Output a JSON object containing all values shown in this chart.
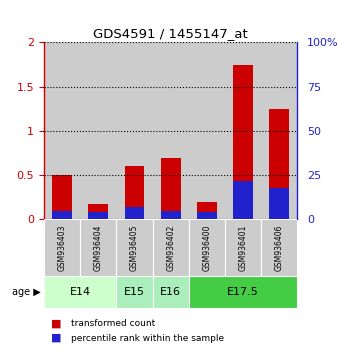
{
  "title": "GDS4591 / 1455147_at",
  "samples": [
    "GSM936403",
    "GSM936404",
    "GSM936405",
    "GSM936402",
    "GSM936400",
    "GSM936401",
    "GSM936406"
  ],
  "transformed_count": [
    0.5,
    0.18,
    0.6,
    0.7,
    0.2,
    1.75,
    1.25
  ],
  "percentile_rank_pct": [
    5,
    4,
    7,
    5,
    4,
    22,
    18
  ],
  "ylim_left": [
    0,
    2
  ],
  "ylim_right": [
    0,
    100
  ],
  "yticks_left": [
    0,
    0.5,
    1.0,
    1.5,
    2.0
  ],
  "ytick_labels_left": [
    "0",
    "0.5",
    "1",
    "1.5",
    "2"
  ],
  "yticks_right": [
    0,
    25,
    50,
    75,
    100
  ],
  "ytick_labels_right": [
    "0",
    "25",
    "50",
    "75",
    "100%"
  ],
  "bar_color_red": "#cc0000",
  "bar_color_blue": "#2222cc",
  "bar_width": 0.55,
  "age_groups": [
    {
      "label": "E14",
      "samples": [
        0,
        1
      ],
      "color": "#ccffcc"
    },
    {
      "label": "E15",
      "samples": [
        2
      ],
      "color": "#aaeebb"
    },
    {
      "label": "E16",
      "samples": [
        3
      ],
      "color": "#aaeebb"
    },
    {
      "label": "E17.5",
      "samples": [
        4,
        5,
        6
      ],
      "color": "#44cc44"
    }
  ],
  "background_color": "#ffffff",
  "sample_bg_color": "#cccccc",
  "legend_red_label": "transformed count",
  "legend_blue_label": "percentile rank within the sample"
}
